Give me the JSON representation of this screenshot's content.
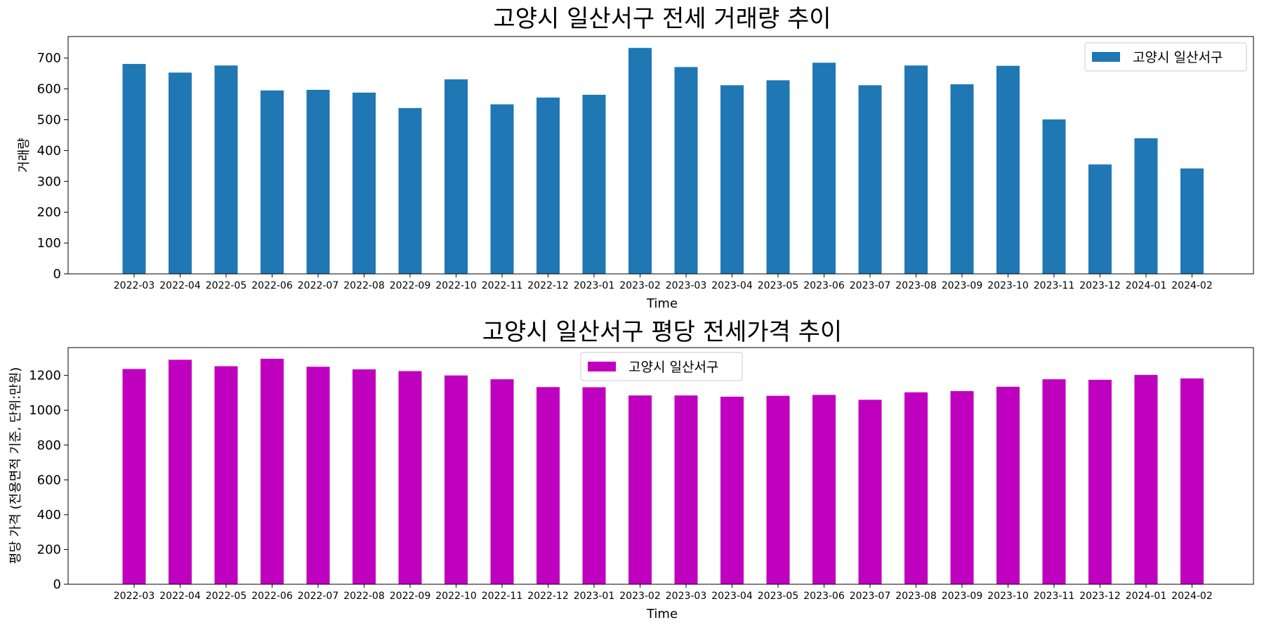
{
  "chart_data": [
    {
      "type": "bar",
      "title": "고양시 일산서구 전세 거래량 추이",
      "xlabel": "Time",
      "ylabel": "거래량",
      "ylim": [
        0,
        770
      ],
      "yticks": [
        0,
        100,
        200,
        300,
        400,
        500,
        600,
        700
      ],
      "grid": false,
      "legend_position": "top-right",
      "categories": [
        "2022-03",
        "2022-04",
        "2022-05",
        "2022-06",
        "2022-07",
        "2022-08",
        "2022-09",
        "2022-10",
        "2022-11",
        "2022-12",
        "2023-01",
        "2023-02",
        "2023-03",
        "2023-04",
        "2023-05",
        "2023-06",
        "2023-07",
        "2023-08",
        "2023-09",
        "2023-10",
        "2023-11",
        "2023-12",
        "2024-01",
        "2024-02"
      ],
      "series": [
        {
          "name": "고양시 일산서구",
          "color": "#1f77b4",
          "values": [
            681,
            653,
            676,
            595,
            597,
            588,
            538,
            631,
            550,
            572,
            581,
            733,
            671,
            612,
            628,
            685,
            612,
            676,
            615,
            675,
            501,
            355,
            440,
            342
          ]
        }
      ]
    },
    {
      "type": "bar",
      "title": "고양시 일산서구 평당 전세가격 추이",
      "xlabel": "Time",
      "ylabel": "평당 가격 (전용면적 기준, 단위:만원)",
      "ylim": [
        0,
        1360
      ],
      "yticks": [
        0,
        200,
        400,
        600,
        800,
        1000,
        1200
      ],
      "grid": false,
      "legend_position": "top-center",
      "categories": [
        "2022-03",
        "2022-04",
        "2022-05",
        "2022-06",
        "2022-07",
        "2022-08",
        "2022-09",
        "2022-10",
        "2022-11",
        "2022-12",
        "2023-01",
        "2023-02",
        "2023-03",
        "2023-04",
        "2023-05",
        "2023-06",
        "2023-07",
        "2023-08",
        "2023-09",
        "2023-10",
        "2023-11",
        "2023-12",
        "2024-01",
        "2024-02"
      ],
      "series": [
        {
          "name": "고양시 일산서구",
          "color": "#bf00bf",
          "values": [
            1237,
            1290,
            1253,
            1296,
            1250,
            1235,
            1225,
            1200,
            1178,
            1133,
            1132,
            1085,
            1085,
            1078,
            1083,
            1088,
            1060,
            1103,
            1110,
            1135,
            1178,
            1175,
            1203,
            1183
          ]
        }
      ]
    }
  ]
}
